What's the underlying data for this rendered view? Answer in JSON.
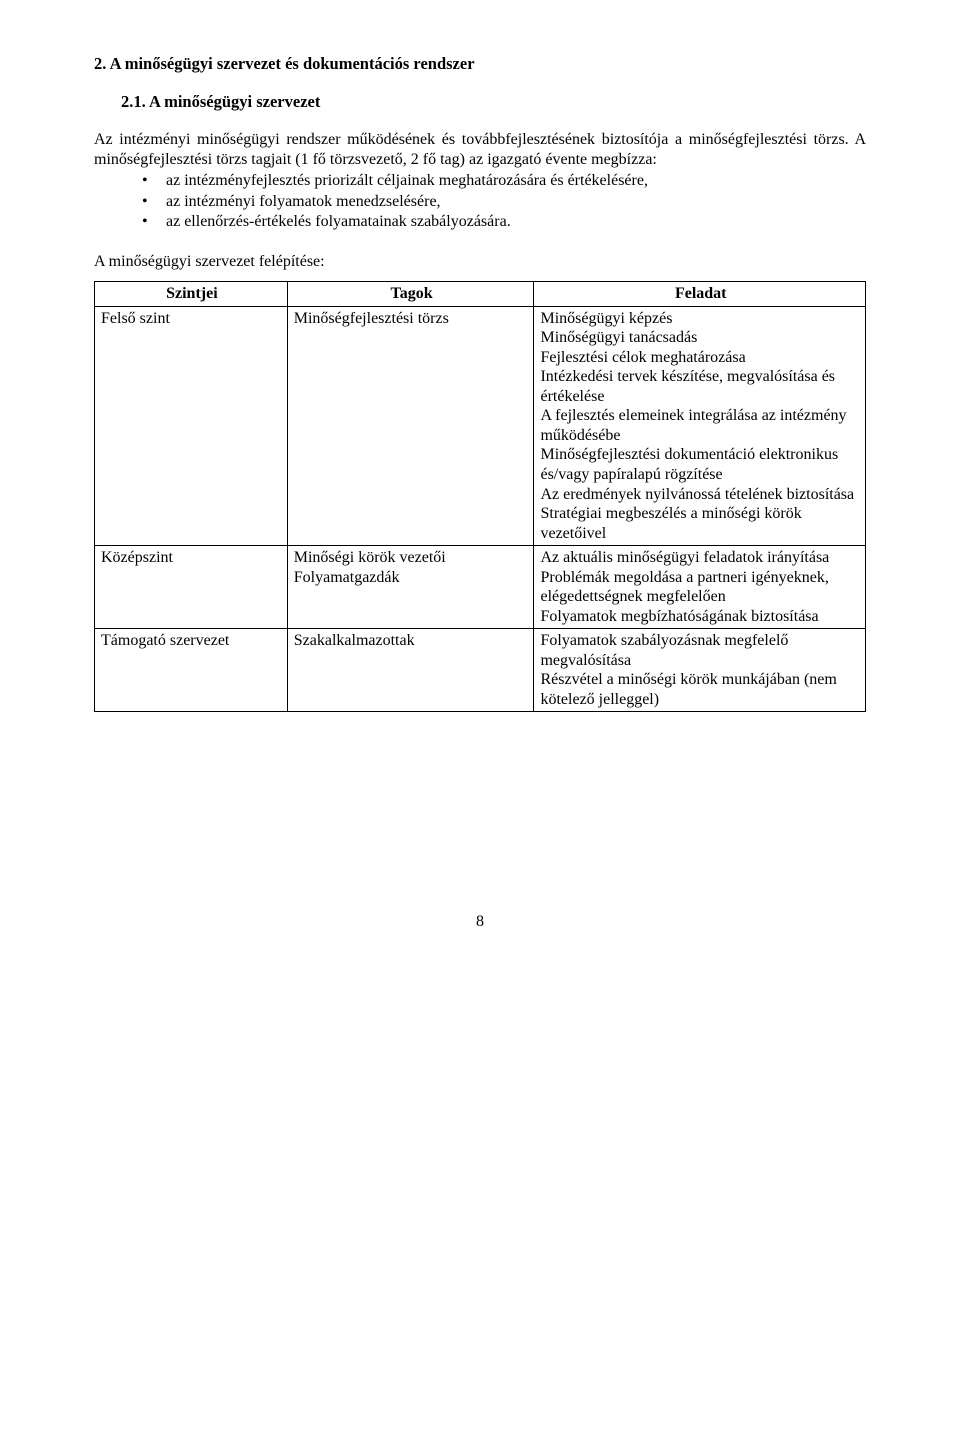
{
  "heading1": "2.  A minőségügyi szervezet és dokumentációs rendszer",
  "heading2": "2.1. A minőségügyi szervezet",
  "para1": "Az intézményi minőségügyi rendszer működésének és továbbfejlesztésének biztosítója a minőségfejlesztési törzs. A minőségfejlesztési törzs tagjait (1 fő törzsvezető, 2 fő tag) az igazgató évente megbízza:",
  "bullets": [
    "az intézményfejlesztés priorizált céljainak meghatározására és értékelésére,",
    "az intézményi folyamatok menedzselésére,",
    "az ellenőrzés-értékelés folyamatainak szabályozására."
  ],
  "caption": "A minőségügyi szervezet felépítése:",
  "table": {
    "headers": [
      "Szintjei",
      "Tagok",
      "Feladat"
    ],
    "rows": [
      {
        "c0": "Felső szint",
        "c1": "Minőségfejlesztési törzs",
        "c2": "Minőségügyi képzés\nMinőségügyi tanácsadás\nFejlesztési célok meghatározása\nIntézkedési tervek készítése, megvalósítása és értékelése\nA fejlesztés elemeinek integrálása az intézmény működésébe\nMinőségfejlesztési dokumentáció elektronikus és/vagy papíralapú rögzítése\nAz eredmények nyilvánossá tételének biztosítása\nStratégiai megbeszélés a minőségi körök vezetőivel"
      },
      {
        "c0": "Középszint",
        "c1": "Minőségi körök vezetői\nFolyamatgazdák",
        "c2": "Az aktuális minőségügyi feladatok irányítása\nProblémák megoldása a partneri igényeknek, elégedettségnek megfelelően\nFolyamatok megbízhatóságának biztosítása"
      },
      {
        "c0": "Támogató szervezet",
        "c1": "Szakalkalmazottak",
        "c2": "Folyamatok szabályozásnak megfelelő megvalósítása\nRészvétel a minőségi körök munkájában (nem kötelező jelleggel)"
      }
    ]
  },
  "pageNumber": "8"
}
